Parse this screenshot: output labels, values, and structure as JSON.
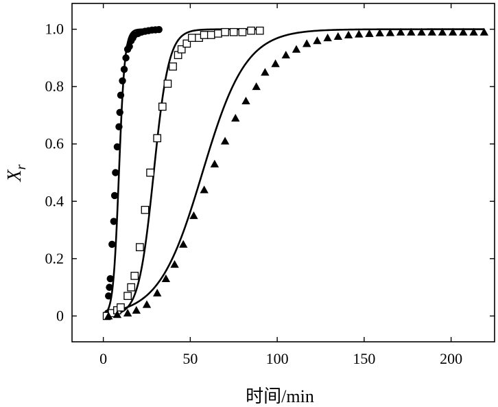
{
  "chart_data": {
    "type": "scatter",
    "xlabel": "时间/min",
    "ylabel": "X",
    "ylabel_subscript": "r",
    "xlim": [
      -18,
      225
    ],
    "ylim": [
      -0.09,
      1.09
    ],
    "xticks": [
      0,
      50,
      100,
      150,
      200
    ],
    "xtick_labels": [
      "0",
      "50",
      "100",
      "150",
      "200"
    ],
    "yticks": [
      0,
      0.2,
      0.4,
      0.6,
      0.8,
      1.0
    ],
    "ytick_labels": [
      "0",
      "0.2",
      "0.4",
      "0.6",
      "0.8",
      "1.0"
    ],
    "grid": false,
    "legend": "none",
    "series": [
      {
        "marker": "filled-circle",
        "x": [
          2,
          2.5,
          3,
          3.5,
          4,
          5,
          6,
          6.5,
          7,
          8,
          9,
          9.5,
          10,
          11,
          12,
          13,
          14,
          15,
          16,
          17,
          18,
          20,
          22,
          24,
          26,
          28,
          30,
          32
        ],
        "y": [
          0,
          0.01,
          0.07,
          0.1,
          0.13,
          0.25,
          0.33,
          0.42,
          0.5,
          0.59,
          0.66,
          0.71,
          0.77,
          0.82,
          0.86,
          0.9,
          0.93,
          0.94,
          0.96,
          0.97,
          0.98,
          0.985,
          0.99,
          0.993,
          0.995,
          0.997,
          0.998,
          0.999
        ],
        "fit_curve": {
          "k": 0.6,
          "t0": 9
        }
      },
      {
        "marker": "open-square",
        "x": [
          2,
          5,
          8,
          10,
          14,
          16,
          18,
          21,
          24,
          27,
          31,
          34,
          37,
          40,
          43,
          45,
          48,
          51,
          55,
          58,
          62,
          66,
          70,
          75,
          80,
          85,
          90
        ],
        "y": [
          0,
          0.01,
          0.02,
          0.03,
          0.07,
          0.1,
          0.14,
          0.24,
          0.37,
          0.5,
          0.62,
          0.73,
          0.81,
          0.87,
          0.91,
          0.93,
          0.95,
          0.97,
          0.97,
          0.98,
          0.98,
          0.985,
          0.99,
          0.99,
          0.99,
          0.995,
          0.995
        ],
        "fit_curve": {
          "k": 0.23,
          "t0": 29
        }
      },
      {
        "marker": "filled-triangle",
        "x": [
          3,
          8,
          14,
          19,
          25,
          31,
          36,
          41,
          46,
          52,
          58,
          64,
          70,
          76,
          82,
          88,
          93,
          99,
          105,
          111,
          117,
          123,
          129,
          135,
          141,
          147,
          153,
          159,
          165,
          171,
          177,
          183,
          189,
          195,
          201,
          207,
          213,
          219
        ],
        "y": [
          0,
          0.005,
          0.01,
          0.02,
          0.04,
          0.08,
          0.13,
          0.18,
          0.25,
          0.35,
          0.44,
          0.53,
          0.61,
          0.69,
          0.75,
          0.8,
          0.85,
          0.88,
          0.91,
          0.93,
          0.95,
          0.96,
          0.97,
          0.975,
          0.98,
          0.983,
          0.985,
          0.987,
          0.988,
          0.99,
          0.99,
          0.99,
          0.99,
          0.99,
          0.99,
          0.99,
          0.99,
          0.99
        ],
        "fit_curve": {
          "k": 0.08,
          "t0": 57
        }
      }
    ]
  }
}
